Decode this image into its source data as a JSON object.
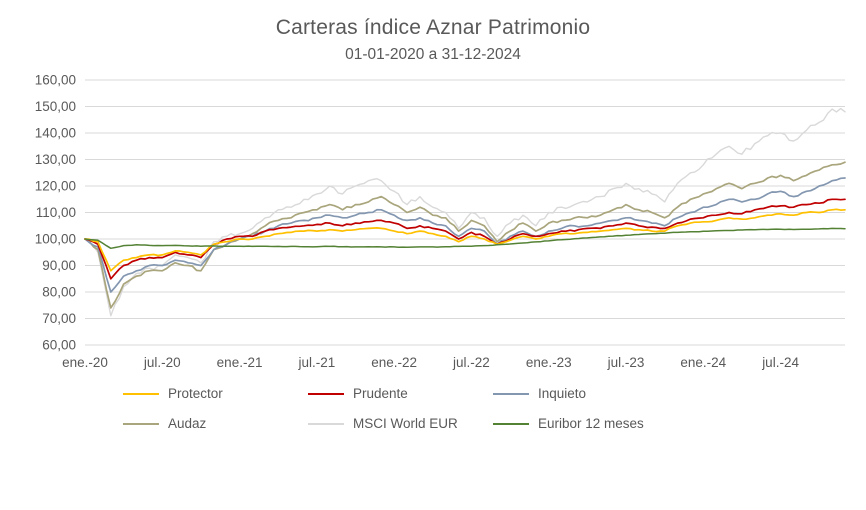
{
  "chart_data": {
    "type": "line",
    "title": "Carteras índice Aznar Patrimonio",
    "subtitle": "01-01-2020 a 31-12-2024",
    "ylim": [
      60,
      160
    ],
    "grid": true,
    "legend_position": "bottom",
    "text_color": "#595959",
    "grid_color": "#D9D9D9",
    "y_ticks": [
      {
        "value": 160,
        "label": "160,00"
      },
      {
        "value": 150,
        "label": "150,00"
      },
      {
        "value": 140,
        "label": "140,00"
      },
      {
        "value": 130,
        "label": "130,00"
      },
      {
        "value": 120,
        "label": "120,00"
      },
      {
        "value": 110,
        "label": "110,00"
      },
      {
        "value": 100,
        "label": "100,00"
      },
      {
        "value": 90,
        "label": "90,00"
      },
      {
        "value": 80,
        "label": "80,00"
      },
      {
        "value": 70,
        "label": "70,00"
      },
      {
        "value": 60,
        "label": "60,00"
      }
    ],
    "x_ticks": [
      {
        "pos": 0,
        "label": "ene.-20"
      },
      {
        "pos": 6,
        "label": "jul.-20"
      },
      {
        "pos": 12,
        "label": "ene.-21"
      },
      {
        "pos": 18,
        "label": "jul.-21"
      },
      {
        "pos": 24,
        "label": "ene.-22"
      },
      {
        "pos": 30,
        "label": "jul.-22"
      },
      {
        "pos": 36,
        "label": "ene.-23"
      },
      {
        "pos": 42,
        "label": "jul.-23"
      },
      {
        "pos": 48,
        "label": "ene.-24"
      },
      {
        "pos": 54,
        "label": "jul.-24"
      }
    ],
    "x_unit": "month-index, ene.-20 = 0, dic.-24 = 59",
    "draw_order": [
      4,
      3,
      2,
      1,
      0,
      5
    ],
    "series": [
      {
        "name": "Protector",
        "color": "#FFC000",
        "stroke_width": 1.7,
        "volatility": 0.25,
        "values": [
          100,
          99,
          88,
          92,
          93,
          94,
          94,
          95.5,
          95,
          94,
          98,
          99,
          100,
          100,
          101,
          102,
          102.5,
          103,
          103,
          103.5,
          103,
          103.5,
          104,
          104,
          103,
          102,
          103,
          102,
          101,
          99,
          101,
          100,
          98,
          99.5,
          101,
          100,
          101,
          102,
          102,
          102.5,
          103,
          103.5,
          104,
          103.5,
          103,
          103,
          105,
          106,
          106.5,
          107,
          108,
          107.5,
          108,
          109,
          109.5,
          109,
          110,
          110,
          111,
          111
        ]
      },
      {
        "name": "Prudente",
        "color": "#C00000",
        "stroke_width": 1.7,
        "volatility": 0.35,
        "values": [
          100,
          98,
          85,
          90,
          92,
          93,
          93,
          95,
          94,
          93,
          98,
          100,
          101,
          101,
          103,
          104,
          104.5,
          105,
          105.5,
          106,
          105,
          106,
          106.5,
          107,
          106,
          104,
          105,
          104,
          103,
          100,
          102.5,
          101,
          98,
          100,
          102,
          101,
          102,
          103,
          103,
          104,
          104,
          105,
          106,
          105,
          104.5,
          104,
          106,
          107.5,
          108,
          109,
          110,
          109.5,
          111,
          112,
          112.5,
          112,
          113,
          113.5,
          115,
          115
        ]
      },
      {
        "name": "Inquieto",
        "color": "#8497B0",
        "stroke_width": 1.7,
        "volatility": 0.45,
        "values": [
          100,
          97,
          80,
          86,
          88,
          90,
          90,
          92,
          91,
          90,
          96,
          98,
          100,
          101,
          103,
          105,
          106,
          107,
          108,
          109,
          108,
          109,
          110,
          111,
          109,
          107,
          108,
          106,
          105,
          101,
          104,
          103,
          98,
          101,
          103,
          101,
          103,
          104,
          105,
          105,
          106,
          107,
          108,
          107,
          106,
          105,
          108,
          110,
          112,
          113,
          115,
          114,
          115,
          117,
          118,
          116,
          118,
          120,
          122,
          123
        ]
      },
      {
        "name": "Audaz",
        "color": "#A9A57C",
        "stroke_width": 1.7,
        "volatility": 0.55,
        "values": [
          100,
          96,
          74,
          83,
          86,
          88,
          88,
          91,
          90,
          88,
          96,
          98,
          100,
          102,
          105,
          107,
          108,
          110,
          111,
          113,
          111,
          113,
          114,
          116,
          113,
          110,
          112,
          109,
          108,
          103,
          107,
          105,
          99,
          103,
          106,
          103,
          106,
          107,
          108,
          108,
          109,
          111,
          113,
          111,
          110,
          108,
          112,
          115,
          117,
          119,
          121,
          119,
          121,
          123,
          124,
          122,
          124,
          126,
          128,
          129
        ]
      },
      {
        "name": "MSCI World EUR",
        "color": "#D9D9D9",
        "stroke_width": 1.4,
        "volatility": 0.9,
        "values": [
          100,
          95,
          71,
          82,
          87,
          89,
          90,
          94,
          93,
          91,
          99,
          101,
          102,
          104,
          108,
          111,
          112,
          115,
          117,
          120,
          117,
          120,
          122,
          122,
          118,
          113,
          116,
          112,
          110,
          104,
          110,
          108,
          101,
          106,
          109,
          105,
          110,
          112,
          113,
          114,
          116,
          119,
          121,
          119,
          117,
          114,
          121,
          125,
          128,
          132,
          135,
          132,
          136,
          139,
          140,
          137,
          141,
          144,
          149,
          148
        ]
      },
      {
        "name": "Euribor 12 meses",
        "color": "#548235",
        "stroke_width": 1.5,
        "volatility": 0.08,
        "values": [
          100,
          99.5,
          96.5,
          97.5,
          97.8,
          97.6,
          97.5,
          97.6,
          97.4,
          97.3,
          97.4,
          97.3,
          97.3,
          97.2,
          97.3,
          97.2,
          97.2,
          97.1,
          97.1,
          97.2,
          97.1,
          97,
          97.1,
          97,
          97,
          96.9,
          97,
          97,
          97.1,
          97.2,
          97.3,
          97.5,
          97.8,
          98.1,
          98.5,
          98.9,
          99.3,
          99.7,
          100.1,
          100.4,
          100.8,
          101.1,
          101.4,
          101.7,
          102,
          102.2,
          102.5,
          102.7,
          102.9,
          103.1,
          103.2,
          103.4,
          103.5,
          103.6,
          103.7,
          103.6,
          103.7,
          103.8,
          104,
          103.9
        ]
      }
    ]
  }
}
